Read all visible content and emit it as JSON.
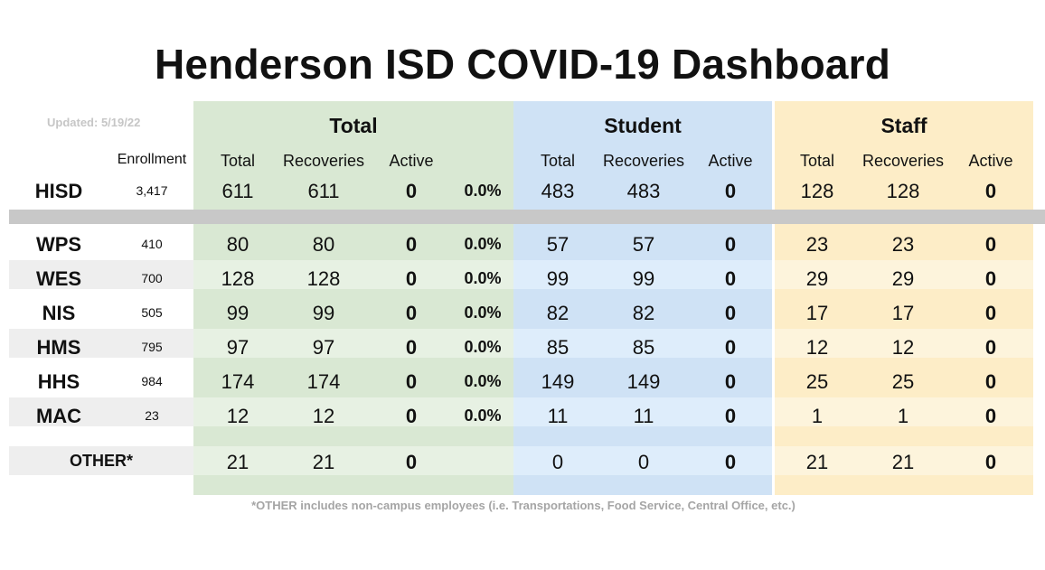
{
  "title": "Henderson ISD COVID-19 Dashboard",
  "updated": "Updated: 5/19/22",
  "groups": {
    "total": "Total",
    "student": "Student",
    "staff": "Staff"
  },
  "headers": {
    "enrollment": "Enrollment",
    "total": "Total",
    "recoveries": "Recoveries",
    "active": "Active"
  },
  "district": {
    "name": "HISD",
    "enrollment": "3,417",
    "total": "611",
    "recoveries": "611",
    "active": "0",
    "pct": "0.0%",
    "student_total": "483",
    "student_recoveries": "483",
    "student_active": "0",
    "staff_total": "128",
    "staff_recoveries": "128",
    "staff_active": "0"
  },
  "campuses": [
    {
      "name": "WPS",
      "enrollment": "410",
      "total": "80",
      "recoveries": "80",
      "active": "0",
      "pct": "0.0%",
      "student_total": "57",
      "student_recoveries": "57",
      "student_active": "0",
      "staff_total": "23",
      "staff_recoveries": "23",
      "staff_active": "0"
    },
    {
      "name": "WES",
      "enrollment": "700",
      "total": "128",
      "recoveries": "128",
      "active": "0",
      "pct": "0.0%",
      "student_total": "99",
      "student_recoveries": "99",
      "student_active": "0",
      "staff_total": "29",
      "staff_recoveries": "29",
      "staff_active": "0"
    },
    {
      "name": "NIS",
      "enrollment": "505",
      "total": "99",
      "recoveries": "99",
      "active": "0",
      "pct": "0.0%",
      "student_total": "82",
      "student_recoveries": "82",
      "student_active": "0",
      "staff_total": "17",
      "staff_recoveries": "17",
      "staff_active": "0"
    },
    {
      "name": "HMS",
      "enrollment": "795",
      "total": "97",
      "recoveries": "97",
      "active": "0",
      "pct": "0.0%",
      "student_total": "85",
      "student_recoveries": "85",
      "student_active": "0",
      "staff_total": "12",
      "staff_recoveries": "12",
      "staff_active": "0"
    },
    {
      "name": "HHS",
      "enrollment": "984",
      "total": "174",
      "recoveries": "174",
      "active": "0",
      "pct": "0.0%",
      "student_total": "149",
      "student_recoveries": "149",
      "student_active": "0",
      "staff_total": "25",
      "staff_recoveries": "25",
      "staff_active": "0"
    },
    {
      "name": "MAC",
      "enrollment": "23",
      "total": "12",
      "recoveries": "12",
      "active": "0",
      "pct": "0.0%",
      "student_total": "11",
      "student_recoveries": "11",
      "student_active": "0",
      "staff_total": "1",
      "staff_recoveries": "1",
      "staff_active": "0"
    }
  ],
  "other": {
    "name": "OTHER*",
    "total": "21",
    "recoveries": "21",
    "active": "0",
    "student_total": "0",
    "student_recoveries": "0",
    "student_active": "0",
    "staff_total": "21",
    "staff_recoveries": "21",
    "staff_active": "0"
  },
  "footnote": "*OTHER includes non-campus employees (i.e. Transportations, Food Service, Central Office, etc.)"
}
